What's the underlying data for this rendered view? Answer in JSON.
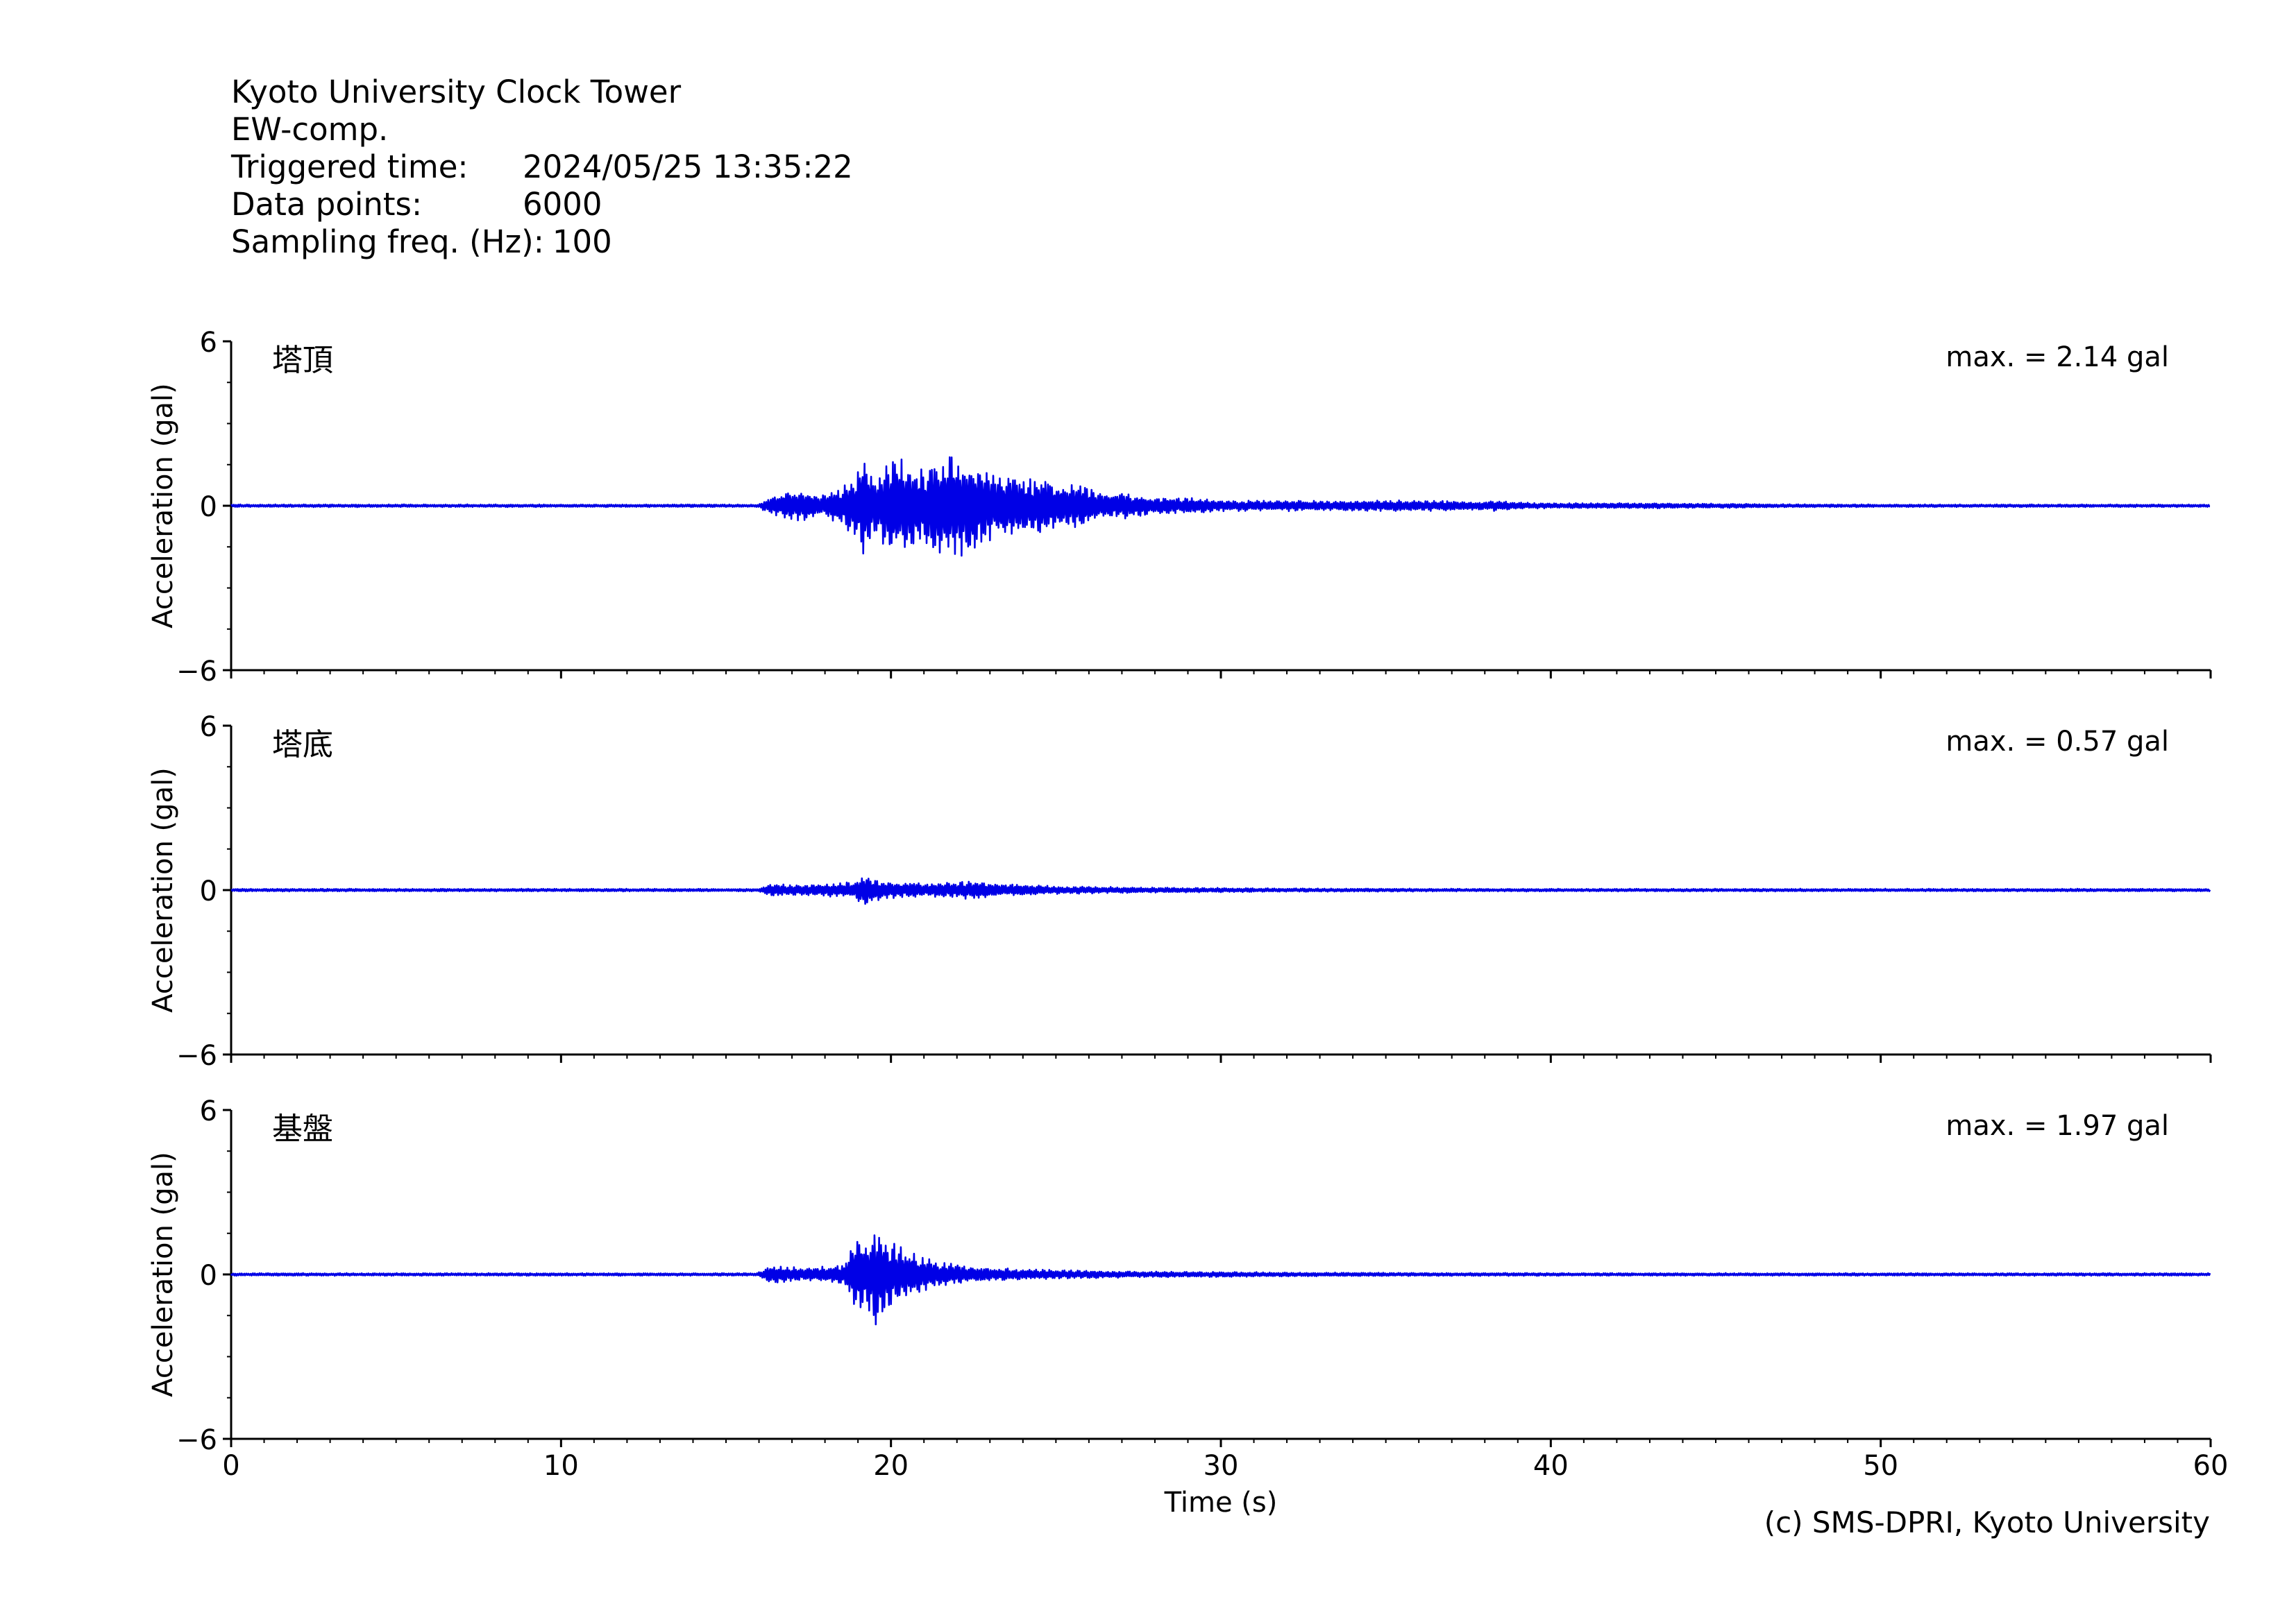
{
  "header": {
    "station": "Kyoto University Clock Tower",
    "component": "EW-comp.",
    "triggered_label": "Triggered time:",
    "triggered_value": "2024/05/25 13:35:22",
    "points_label": "Data points:",
    "points_value": "6000",
    "freq_label": "Sampling freq. (Hz):",
    "freq_value": "100"
  },
  "credit": "(c) SMS-DPRI, Kyoto University",
  "colors": {
    "trace": "#0000e6",
    "axis": "#000000"
  },
  "chart_data": [
    {
      "type": "line",
      "title": "塔頂",
      "annotation": "max. = 2.14 gal",
      "ylabel": "Acceleration (gal)",
      "xlabel": "",
      "ylim": [
        -6,
        6
      ],
      "xlim": [
        0,
        60
      ],
      "yticks": [
        -6,
        0,
        6
      ],
      "xticks": [
        0,
        10,
        20,
        30,
        40,
        50,
        60
      ],
      "xtick_labels": false,
      "series": [
        {
          "x": [
            0,
            15.9,
            16.3,
            16.8,
            17.3,
            17.9,
            18.5,
            19.0,
            19.2,
            19.5,
            19.8,
            20.1,
            20.4,
            20.7,
            21.0,
            21.3,
            21.6,
            21.9,
            22.2,
            22.5,
            22.8,
            23.1,
            23.4,
            23.7,
            24.0,
            24.3,
            24.6,
            24.9,
            25.2,
            25.5,
            25.8,
            26.2,
            26.6,
            27.0,
            27.5,
            28.0,
            28.5,
            29.0,
            29.6,
            30.3,
            31.0,
            32.0,
            33.5,
            35.0,
            36.5,
            38.0,
            38.3,
            39.5,
            41.0,
            43.0,
            45.0,
            47.0,
            50.0,
            55.0,
            60
          ],
          "y": [
            0,
            0,
            0.3,
            -0.5,
            0.6,
            -0.4,
            0.7,
            -1.3,
            2.1,
            -1.1,
            1.5,
            -1.9,
            1.7,
            -1.6,
            1.4,
            -1.8,
            1.9,
            -2.1,
            1.8,
            -1.7,
            1.4,
            -1.3,
            1.2,
            -1.1,
            1.1,
            -1.0,
            1.1,
            -1.0,
            0.9,
            -0.8,
            0.8,
            -0.6,
            0.5,
            -0.5,
            0.4,
            -0.35,
            0.3,
            -0.3,
            0.25,
            -0.2,
            0.2,
            -0.2,
            0.18,
            -0.2,
            0.2,
            -0.15,
            0.2,
            -0.1,
            0.1,
            -0.1,
            0.08,
            -0.06,
            0.05,
            -0.04,
            0
          ]
        }
      ]
    },
    {
      "type": "line",
      "title": "塔底",
      "annotation": "max. = 0.57 gal",
      "ylabel": "Acceleration (gal)",
      "xlabel": "",
      "ylim": [
        -6,
        6
      ],
      "xlim": [
        0,
        60
      ],
      "yticks": [
        -6,
        0,
        6
      ],
      "xticks": [
        0,
        10,
        20,
        30,
        40,
        50,
        60
      ],
      "xtick_labels": false,
      "series": [
        {
          "x": [
            0,
            15.9,
            16.4,
            17.0,
            17.6,
            18.2,
            18.8,
            19.1,
            19.3,
            19.6,
            19.9,
            20.3,
            20.7,
            21.1,
            21.5,
            22.0,
            22.5,
            23.0,
            24.0,
            25.0,
            26.5,
            28.0,
            30.0,
            33.0,
            38.0,
            45.0,
            52.0,
            60
          ],
          "y": [
            0,
            0,
            0.25,
            -0.2,
            0.2,
            -0.25,
            0.3,
            -0.5,
            0.57,
            -0.4,
            0.35,
            -0.3,
            0.3,
            -0.25,
            0.28,
            -0.3,
            0.35,
            -0.25,
            0.2,
            -0.15,
            0.12,
            -0.1,
            0.08,
            -0.06,
            0.05,
            -0.04,
            0.03,
            0
          ]
        }
      ]
    },
    {
      "type": "line",
      "title": "基盤",
      "annotation": "max. = 1.97 gal",
      "ylabel": "Acceleration (gal)",
      "xlabel": "Time (s)",
      "ylim": [
        -6,
        6
      ],
      "xlim": [
        0,
        60
      ],
      "yticks": [
        -6,
        0,
        6
      ],
      "xticks": [
        0,
        10,
        20,
        30,
        40,
        50,
        60
      ],
      "xtick_labels": true,
      "series": [
        {
          "x": [
            0,
            15.9,
            16.3,
            16.8,
            17.4,
            18.0,
            18.6,
            18.9,
            19.1,
            19.3,
            19.5,
            19.7,
            19.9,
            20.1,
            20.4,
            20.7,
            21.0,
            21.4,
            21.8,
            22.3,
            23.0,
            24.0,
            25.5,
            27.0,
            29.0,
            32.0,
            36.0,
            42.0,
            50.0,
            60
          ],
          "y": [
            0,
            0,
            0.35,
            -0.3,
            0.25,
            -0.3,
            0.4,
            -1.2,
            1.5,
            -1.3,
            1.97,
            -1.4,
            1.3,
            -1.2,
            0.9,
            -0.8,
            0.6,
            -0.5,
            0.4,
            -0.3,
            0.25,
            -0.2,
            0.15,
            -0.12,
            0.1,
            -0.08,
            0.06,
            -0.05,
            0.04,
            0
          ]
        }
      ]
    }
  ]
}
